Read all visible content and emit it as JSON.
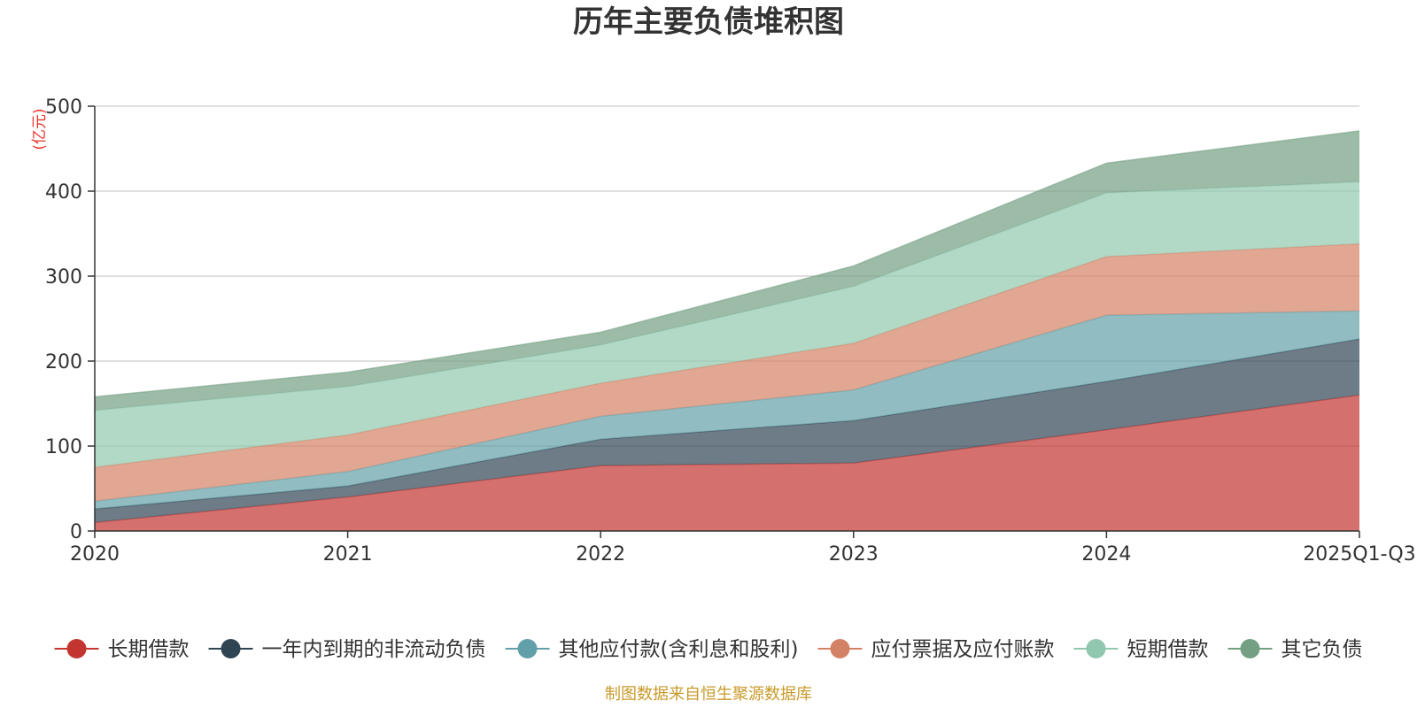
{
  "chart_data": {
    "type": "area",
    "stacked": true,
    "title": "历年主要负债堆积图",
    "ylabel": "(亿元)",
    "xlabel": "",
    "categories": [
      "2020",
      "2021",
      "2022",
      "2023",
      "2024",
      "2025Q1-Q3"
    ],
    "ylim": [
      0,
      500
    ],
    "yticks": [
      0,
      100,
      200,
      300,
      400,
      500
    ],
    "grid": true,
    "legend_position": "bottom",
    "series": [
      {
        "name": "长期借款",
        "color": "#c23531",
        "values": [
          10,
          40,
          77,
          80,
          119,
          160
        ]
      },
      {
        "name": "一年内到期的非流动负债",
        "color": "#2f4554",
        "values": [
          16,
          13,
          31,
          50,
          57,
          66
        ]
      },
      {
        "name": "其他应付款(含利息和股利)",
        "color": "#61a0a8",
        "values": [
          9,
          17,
          27,
          36,
          78,
          33
        ]
      },
      {
        "name": "应付票据及应付账款",
        "color": "#d48265",
        "values": [
          40,
          43,
          39,
          55,
          69,
          79
        ]
      },
      {
        "name": "短期借款",
        "color": "#91c7ae",
        "values": [
          67,
          57,
          45,
          67,
          75,
          73
        ]
      },
      {
        "name": "其它负债",
        "color": "#749f83",
        "values": [
          16,
          17,
          15,
          24,
          35,
          60
        ]
      }
    ],
    "source_note": "制图数据来自恒生聚源数据库"
  }
}
